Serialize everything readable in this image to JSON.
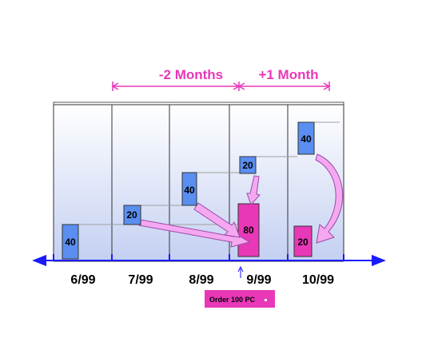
{
  "header": {
    "minus_label": "-2 Months",
    "plus_label": "+1 Month"
  },
  "months": [
    "6/99",
    "7/99",
    "8/99",
    "9/99",
    "10/99"
  ],
  "blue_boxes": [
    {
      "id": "box-6-99",
      "value": "40"
    },
    {
      "id": "box-7-99",
      "value": "20"
    },
    {
      "id": "box-8-99",
      "value": "40"
    },
    {
      "id": "box-9-99",
      "value": "20"
    },
    {
      "id": "box-10-99",
      "value": "40"
    }
  ],
  "pink_boxes": [
    {
      "id": "order-9-99",
      "value": "80"
    },
    {
      "id": "order-10-99",
      "value": "20"
    }
  ],
  "order_note": "Order 100 PC",
  "colors": {
    "accent": "#e838b8",
    "blue_box": "#5a8ef0",
    "axis": "#1a1aff",
    "arrow_fill": "#f5a8f0",
    "arrow_stroke": "#9a4aa8",
    "panel_top": "#ffffff",
    "panel_bottom": "#c4d0f2"
  }
}
